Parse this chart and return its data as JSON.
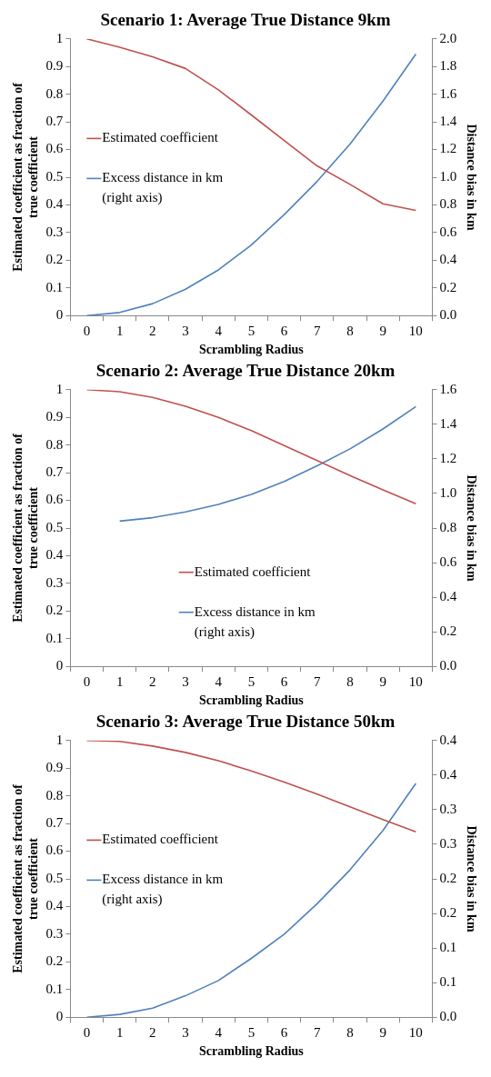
{
  "chart_data": [
    {
      "type": "line",
      "title": "Scenario 1: Average True Distance 9km",
      "xlabel": "Scrambling Radius",
      "ylabel": "Estimated coefficient as fraction of true coefficient",
      "y2label": "Distance bias in km",
      "categories": [
        "0",
        "1",
        "2",
        "3",
        "4",
        "5",
        "6",
        "7",
        "8",
        "9",
        "10"
      ],
      "legend": "center left",
      "ylim": [
        0,
        1
      ],
      "yticks": [
        0,
        0.1,
        0.2,
        0.3,
        0.4,
        0.5,
        0.6,
        0.7,
        0.8,
        0.9,
        1
      ],
      "y2lim": [
        0,
        2
      ],
      "y2ticks": [
        {
          "value": 0,
          "label": "0.0"
        },
        {
          "value": 0.2,
          "label": "0.2"
        },
        {
          "value": 0.4,
          "label": "0.4"
        },
        {
          "value": 0.6,
          "label": "0.6"
        },
        {
          "value": 0.8,
          "label": "0.8"
        },
        {
          "value": 1,
          "label": "1.0"
        },
        {
          "value": 1.2,
          "label": "1.2"
        },
        {
          "value": 1.4,
          "label": "1.4"
        },
        {
          "value": 1.6,
          "label": "1.6"
        },
        {
          "value": 1.8,
          "label": "1.8"
        },
        {
          "value": 2,
          "label": "2.0"
        }
      ],
      "series": [
        {
          "name": "Estimated coefficient",
          "color": "#c0504d",
          "values": [
            1.0,
            0.97,
            0.935,
            0.893,
            0.816,
            0.725,
            0.633,
            0.541,
            0.474,
            0.404,
            0.38
          ]
        },
        {
          "name": "Excess distance in km (right axis)",
          "color": "#4f81bd",
          "axis": "y2",
          "values": [
            0,
            0.022,
            0.086,
            0.19,
            0.33,
            0.51,
            0.73,
            0.97,
            1.24,
            1.55,
            1.89
          ]
        }
      ]
    },
    {
      "type": "line",
      "title": "Scenario 2: Average True Distance 20km",
      "xlabel": "Scrambling Radius",
      "ylabel": "Estimated coefficient as fraction of true coefficient",
      "y2label": "Distance bias in km",
      "categories": [
        "0",
        "1",
        "2",
        "3",
        "4",
        "5",
        "6",
        "7",
        "8",
        "9",
        "10"
      ],
      "legend": "bottom",
      "ylim": [
        0,
        1
      ],
      "yticks": [
        0,
        0.1,
        0.2,
        0.3,
        0.4,
        0.5,
        0.6,
        0.7,
        0.8,
        0.9,
        1
      ],
      "y2lim": [
        0,
        1.6
      ],
      "y2ticks": [
        {
          "value": 0,
          "label": "0.0"
        },
        {
          "value": 0.2,
          "label": "0.2"
        },
        {
          "value": 0.4,
          "label": "0.4"
        },
        {
          "value": 0.6,
          "label": "0.6"
        },
        {
          "value": 0.8,
          "label": "0.8"
        },
        {
          "value": 1,
          "label": "1.0"
        },
        {
          "value": 1.2,
          "label": "1.2"
        },
        {
          "value": 1.4,
          "label": "1.4"
        },
        {
          "value": 1.6,
          "label": "1.6"
        }
      ],
      "series": [
        {
          "name": "Estimated coefficient",
          "color": "#c0504d",
          "values": [
            1.0,
            0.993,
            0.972,
            0.94,
            0.9,
            0.852,
            0.798,
            0.744,
            0.69,
            0.638,
            0.588
          ]
        },
        {
          "name": "Excess distance in km (right axis)",
          "color": "#4f81bd",
          "axis": "y2",
          "values": [
            null,
            0.84,
            0.86,
            0.893,
            0.937,
            0.994,
            1.069,
            1.16,
            1.258,
            1.373,
            1.502
          ]
        }
      ]
    },
    {
      "type": "line",
      "title": "Scenario 3: Average True Distance 50km",
      "xlabel": "Scrambling Radius",
      "ylabel": "Estimated coefficient as fraction of true coefficient",
      "y2label": "Distance bias in km",
      "categories": [
        "0",
        "1",
        "2",
        "3",
        "4",
        "5",
        "6",
        "7",
        "8",
        "9",
        "10"
      ],
      "legend": "center left",
      "ylim": [
        0,
        1
      ],
      "yticks": [
        0,
        0.1,
        0.2,
        0.3,
        0.4,
        0.5,
        0.6,
        0.7,
        0.8,
        0.9,
        1
      ],
      "y2lim": [
        0,
        0.4
      ],
      "y2ticks": [
        {
          "value": 0,
          "label": "0.0"
        },
        {
          "value": 0.05,
          "label": "0.1"
        },
        {
          "value": 0.1,
          "label": "0.1"
        },
        {
          "value": 0.15,
          "label": "0.2"
        },
        {
          "value": 0.2,
          "label": "0.2"
        },
        {
          "value": 0.25,
          "label": "0.3"
        },
        {
          "value": 0.3,
          "label": "0.3"
        },
        {
          "value": 0.35,
          "label": "0.4"
        },
        {
          "value": 0.4,
          "label": "0.4"
        }
      ],
      "series": [
        {
          "name": "Estimated coefficient",
          "color": "#c0504d",
          "values": [
            1.0,
            0.997,
            0.98,
            0.957,
            0.927,
            0.89,
            0.85,
            0.806,
            0.76,
            0.714,
            0.67
          ]
        },
        {
          "name": "Excess distance in km (right axis)",
          "color": "#4f81bd",
          "axis": "y2",
          "values": [
            0,
            0.004,
            0.013,
            0.031,
            0.053,
            0.085,
            0.12,
            0.164,
            0.213,
            0.27,
            0.338
          ]
        }
      ]
    }
  ]
}
